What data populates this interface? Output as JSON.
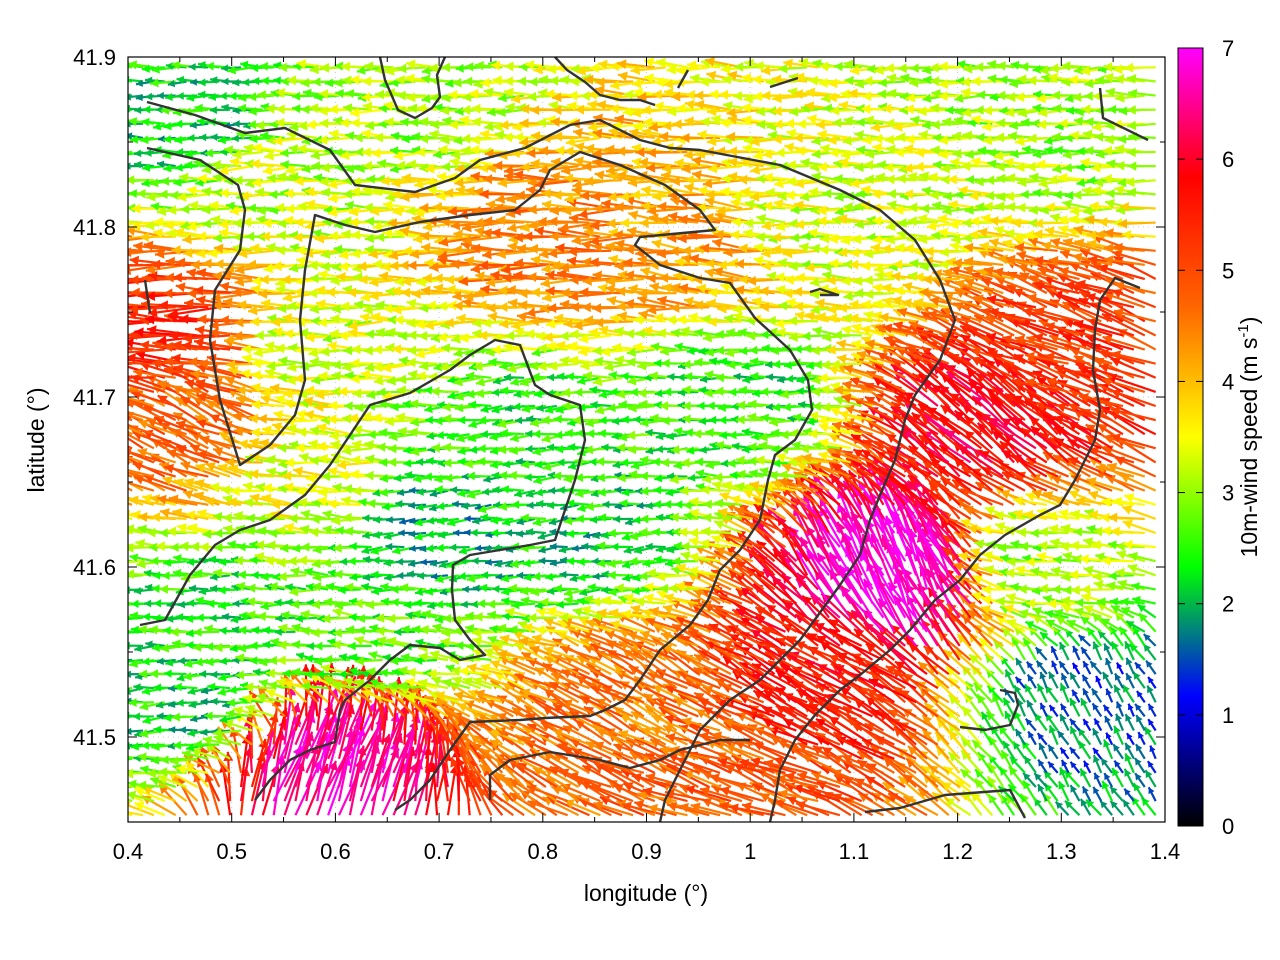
{
  "chart_data": {
    "type": "vector_field",
    "title": "",
    "xlabel": "longitude (°)",
    "ylabel": "latitude (°)",
    "xlim": [
      0.4,
      1.4
    ],
    "ylim": [
      41.45,
      41.9
    ],
    "x_ticks": [
      "0.4",
      "0.5",
      "0.6",
      "0.7",
      "0.8",
      "0.9",
      "1",
      "1.1",
      "1.2",
      "1.3",
      "1.4"
    ],
    "y_ticks": [
      "41.5",
      "41.6",
      "41.7",
      "41.8",
      "41.9"
    ],
    "colorbar": {
      "label": "10m-wind speed (m s",
      "label_superscript": "-1",
      "label_suffix": ")",
      "range": [
        0,
        7
      ],
      "ticks": [
        "0",
        "1",
        "2",
        "3",
        "4",
        "5",
        "6",
        "7"
      ],
      "palette": [
        "#000000",
        "#0000ff",
        "#00ff00",
        "#ffff00",
        "#ff6600",
        "#ff0000",
        "#ff00ff"
      ]
    },
    "grid": "dotted",
    "contour_color": "#333333",
    "field_regions": [
      {
        "lon": 0.44,
        "lat": 41.74,
        "speed": 5.4,
        "direction_deg": 180
      },
      {
        "lon": 0.47,
        "lat": 41.68,
        "speed": 4.8,
        "direction_deg": 155
      },
      {
        "lon": 0.55,
        "lat": 41.83,
        "speed": 3.2,
        "direction_deg": 180
      },
      {
        "lon": 0.67,
        "lat": 41.88,
        "speed": 3.0,
        "direction_deg": 180
      },
      {
        "lon": 0.62,
        "lat": 41.73,
        "speed": 3.3,
        "direction_deg": 180
      },
      {
        "lon": 0.82,
        "lat": 41.79,
        "speed": 4.5,
        "direction_deg": 180
      },
      {
        "lon": 0.95,
        "lat": 41.78,
        "speed": 4.2,
        "direction_deg": 175
      },
      {
        "lon": 0.78,
        "lat": 41.68,
        "speed": 2.4,
        "direction_deg": 185
      },
      {
        "lon": 0.7,
        "lat": 41.62,
        "speed": 2.0,
        "direction_deg": 185
      },
      {
        "lon": 0.85,
        "lat": 41.62,
        "speed": 2.2,
        "direction_deg": 185
      },
      {
        "lon": 1.0,
        "lat": 41.7,
        "speed": 2.4,
        "direction_deg": 180
      },
      {
        "lon": 1.1,
        "lat": 41.8,
        "speed": 3.3,
        "direction_deg": 180
      },
      {
        "lon": 1.3,
        "lat": 41.86,
        "speed": 3.0,
        "direction_deg": 180
      },
      {
        "lon": 1.15,
        "lat": 41.59,
        "speed": 7.0,
        "direction_deg": 115
      },
      {
        "lon": 1.08,
        "lat": 41.53,
        "speed": 5.6,
        "direction_deg": 150
      },
      {
        "lon": 1.25,
        "lat": 41.68,
        "speed": 6.0,
        "direction_deg": 140
      },
      {
        "lon": 1.33,
        "lat": 41.72,
        "speed": 5.2,
        "direction_deg": 160
      },
      {
        "lon": 0.9,
        "lat": 41.52,
        "speed": 4.6,
        "direction_deg": 150
      },
      {
        "lon": 0.98,
        "lat": 41.48,
        "speed": 4.8,
        "direction_deg": 160
      },
      {
        "lon": 0.59,
        "lat": 41.48,
        "speed": 6.6,
        "direction_deg": 70
      },
      {
        "lon": 0.5,
        "lat": 41.57,
        "speed": 2.4,
        "direction_deg": 180
      },
      {
        "lon": 0.47,
        "lat": 41.52,
        "speed": 2.2,
        "direction_deg": 185
      },
      {
        "lon": 0.63,
        "lat": 41.56,
        "speed": 2.6,
        "direction_deg": 175
      },
      {
        "lon": 1.33,
        "lat": 41.52,
        "speed": 1.6,
        "direction_deg": 120
      },
      {
        "lon": 1.3,
        "lat": 41.6,
        "speed": 3.0,
        "direction_deg": 175
      },
      {
        "lon": 0.58,
        "lat": 41.65,
        "speed": 3.4,
        "direction_deg": 175
      },
      {
        "lon": 0.48,
        "lat": 41.86,
        "speed": 2.2,
        "direction_deg": 180
      }
    ]
  }
}
